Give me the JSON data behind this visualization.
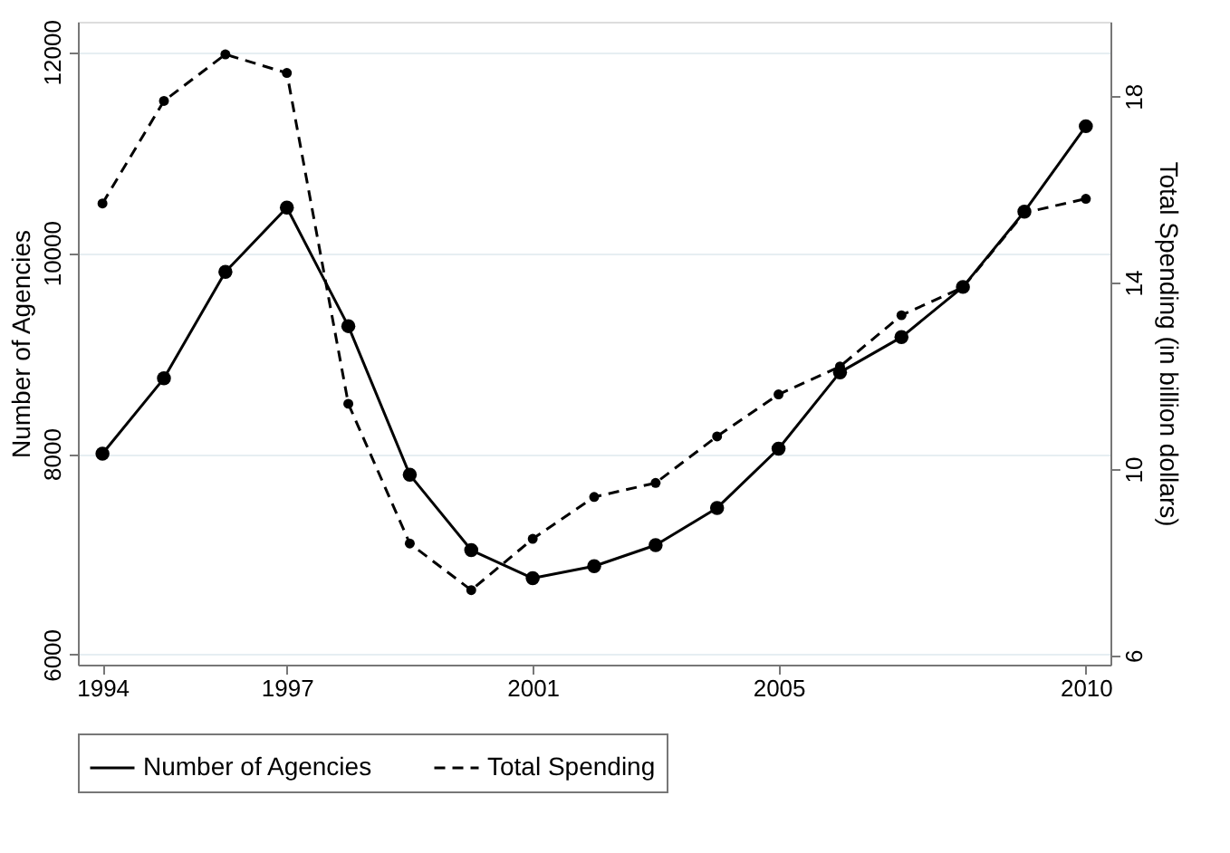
{
  "chart_data": {
    "type": "line",
    "ylabel": "Number of Agencies",
    "y2label": "Total Spending (in billion dollars)",
    "x": [
      1994,
      1995,
      1996,
      1997,
      1998,
      1999,
      2000,
      2001,
      2002,
      2003,
      2004,
      2005,
      2006,
      2007,
      2008,
      2009,
      2010
    ],
    "series": [
      {
        "name": "Number of Agencies",
        "color": "#000000",
        "line_style": "solid",
        "values": [
          8000,
          8750,
          9810,
          10450,
          9270,
          7790,
          7040,
          6760,
          6880,
          7090,
          7460,
          8050,
          8810,
          9160,
          9660,
          10410,
          11260
        ]
      },
      {
        "name": "Total Spending",
        "color": "#000000",
        "line_style": "dashed",
        "axis": "y2",
        "values": [
          15.7,
          17.9,
          18.9,
          18.5,
          11.4,
          8.4,
          7.4,
          8.5,
          9.4,
          9.7,
          10.7,
          11.6,
          12.2,
          13.3,
          13.9,
          15.5,
          15.8
        ]
      }
    ],
    "xlim": [
      1993.6,
      2010.4
    ],
    "xticks": [
      1994,
      1997,
      2001,
      2005,
      2010
    ],
    "ylim": [
      5900,
      12300
    ],
    "yticks": [
      6000,
      8000,
      10000,
      12000
    ],
    "y2lim": [
      5.8,
      19.6
    ],
    "y2ticks": [
      6,
      10,
      14,
      18
    ],
    "grid": "y",
    "legend": "bottom",
    "marker": "circle"
  }
}
